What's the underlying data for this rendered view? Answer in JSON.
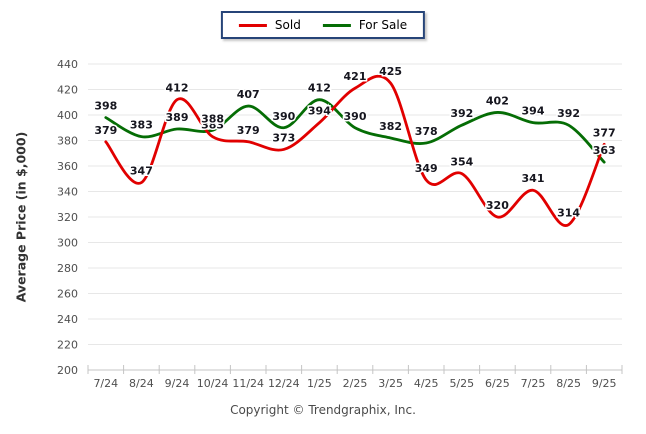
{
  "page": {
    "background": "#ffffff",
    "copyright": "Copyright © Trendgraphix, Inc."
  },
  "chart_data": {
    "type": "line",
    "title": "",
    "xlabel": "",
    "ylabel": "Average Price (in $,000)",
    "categories": [
      "7/24",
      "8/24",
      "9/24",
      "10/24",
      "11/24",
      "12/24",
      "1/25",
      "2/25",
      "3/25",
      "4/25",
      "5/25",
      "6/25",
      "7/25",
      "8/25",
      "9/25"
    ],
    "series": [
      {
        "name": "Sold",
        "color": "#e10000",
        "values": [
          379,
          347,
          412,
          383,
          379,
          373,
          394,
          421,
          425,
          349,
          354,
          320,
          341,
          314,
          377
        ]
      },
      {
        "name": "For Sale",
        "color": "#056d05",
        "values": [
          398,
          383,
          389,
          388,
          407,
          390,
          412,
          390,
          382,
          378,
          392,
          402,
          394,
          392,
          363
        ]
      }
    ],
    "ylim": [
      200,
      440
    ],
    "yticks": [
      200,
      220,
      240,
      260,
      280,
      300,
      320,
      340,
      360,
      380,
      400,
      420,
      440
    ],
    "grid": "horizontal",
    "legend_position": "top-center",
    "smooth": true,
    "data_labels": true,
    "colors": {
      "gridline": "#e7e7e7",
      "axis_line": "#c4c4c4",
      "tick_label": "#4f4f4f",
      "data_label": "#16161f"
    }
  }
}
